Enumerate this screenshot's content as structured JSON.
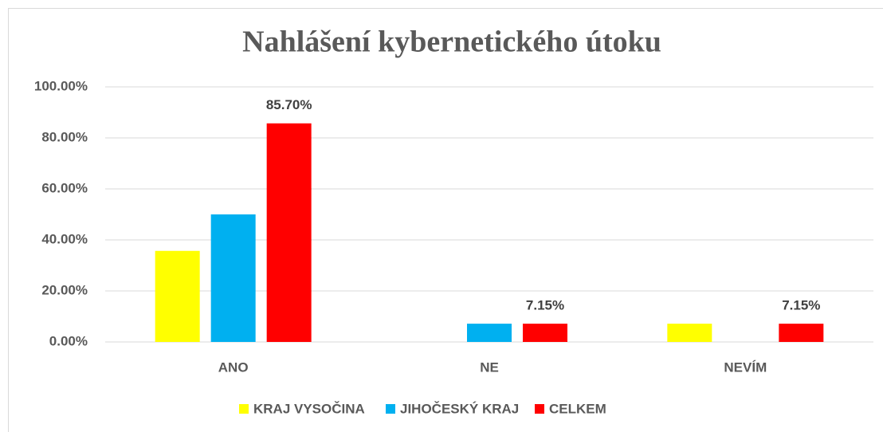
{
  "chart_data": {
    "type": "bar",
    "title": "Nahlášení kybernetického útoku",
    "categories": [
      "ANO",
      "NE",
      "NEVÍM"
    ],
    "series": [
      {
        "name": "KRAJ VYSOČINA",
        "color": "#ffff00",
        "values": [
          35.7,
          0,
          7.15
        ]
      },
      {
        "name": "JIHOČESKÝ KRAJ",
        "color": "#00b0f0",
        "values": [
          50,
          7.15,
          0
        ]
      },
      {
        "name": "CELKEM",
        "color": "#ff0000",
        "values": [
          85.7,
          7.15,
          7.15
        ],
        "value_labels": [
          "85.70%",
          "7.15%",
          "7.15%"
        ]
      }
    ],
    "ylim": [
      0,
      100
    ],
    "yticks": [
      {
        "value": 0,
        "label": "0.00%"
      },
      {
        "value": 20,
        "label": "20.00%"
      },
      {
        "value": 40,
        "label": "40.00%"
      },
      {
        "value": 60,
        "label": "60.00%"
      },
      {
        "value": 80,
        "label": "80.00%"
      },
      {
        "value": 100,
        "label": "100.00%"
      }
    ],
    "grid": true,
    "legend": "bottom"
  }
}
